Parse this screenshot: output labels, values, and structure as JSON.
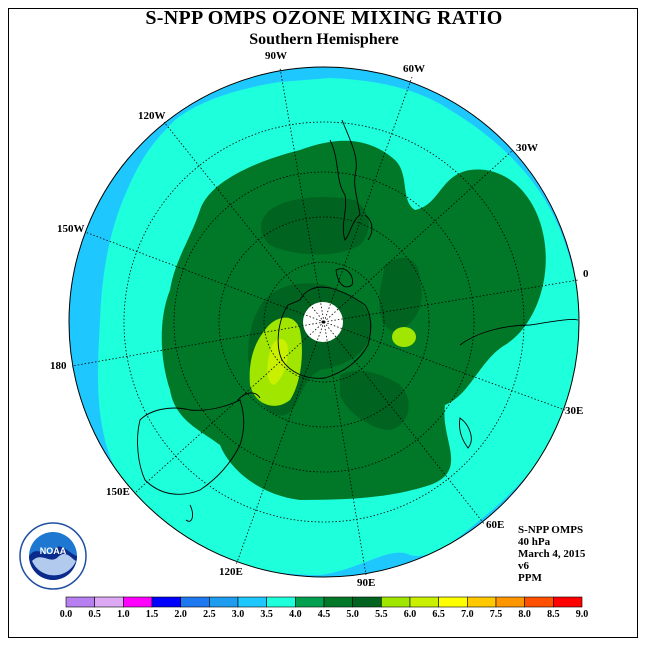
{
  "title": "S-NPP OMPS OZONE MIXING RATIO",
  "subtitle": "Southern Hemisphere",
  "longitude_labels": [
    "90W",
    "60W",
    "30W",
    "0",
    "30E",
    "60E",
    "90E",
    "120E",
    "150E",
    "180",
    "150W",
    "120W"
  ],
  "info": {
    "instrument": "S-NPP OMPS",
    "level": "40 hPa",
    "date": "March 4, 2015",
    "version": "v6",
    "units": "PPM"
  },
  "colorbar": {
    "ticks": [
      "0.0",
      "0.5",
      "1.0",
      "1.5",
      "2.0",
      "2.5",
      "3.0",
      "3.5",
      "4.0",
      "4.5",
      "5.0",
      "5.5",
      "6.0",
      "6.5",
      "7.0",
      "7.5",
      "8.0",
      "8.5",
      "9.0"
    ],
    "colors": [
      "#b87ff0",
      "#dca8f4",
      "#ff00ff",
      "#0000ff",
      "#1e78f0",
      "#1e9cf0",
      "#1ec8ff",
      "#1effdc",
      "#00a050",
      "#007828",
      "#006420",
      "#a0e600",
      "#c8f000",
      "#ffff00",
      "#ffc800",
      "#ff9600",
      "#ff5000",
      "#ff0000",
      "#a05a3c"
    ]
  },
  "map_regions": {
    "outer_band": "#1ec8ff",
    "mid_band": "#1effdc",
    "green_45": "#007828",
    "green_50": "#006420",
    "green_55": "#a0e600",
    "yellow_60": "#c8f000",
    "pole_hole": "#ffffff"
  },
  "logo_text": "NOAA"
}
